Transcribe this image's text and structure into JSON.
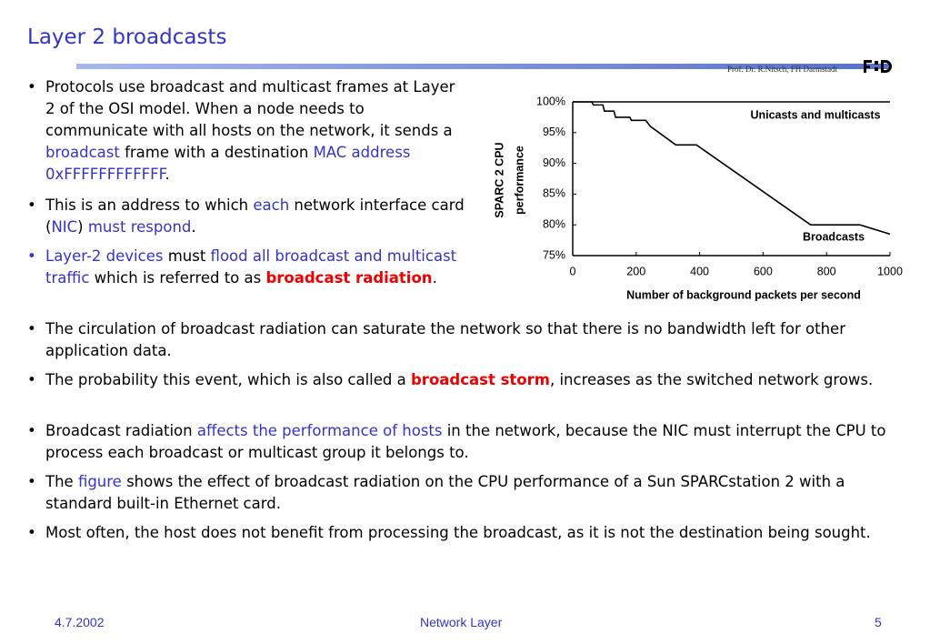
{
  "header": {
    "title": "Layer 2 broadcasts",
    "author": "Prof. Dr. R.Nitsch, FH Darmstadt"
  },
  "paragraphs": [
    {
      "runs": [
        {
          "text": "Protocols use broadcast and multicast frames at Layer 2 of the OSI model.   When a node needs to communicate with all hosts on the network, it sends a "
        },
        {
          "text": "broadcast",
          "style": "blue"
        },
        {
          "text": " frame with a destination "
        },
        {
          "text": "MAC address 0xFFFFFFFFFFFF",
          "style": "blue"
        },
        {
          "text": "."
        }
      ]
    },
    {
      "runs": [
        {
          "text": "This is an address to which "
        },
        {
          "text": "each",
          "style": "blue"
        },
        {
          "text": " network interface card ("
        },
        {
          "text": "NIC",
          "style": "blue"
        },
        {
          "text": ") "
        },
        {
          "text": "must respond",
          "style": "blue"
        },
        {
          "text": "."
        }
      ]
    },
    {
      "bullet_style": "blue",
      "runs": [
        {
          "text": "Layer-2 devices",
          "style": "blue"
        },
        {
          "text": " must "
        },
        {
          "text": "flood all broadcast and multicast traffic",
          "style": "blue"
        },
        {
          "text": " which is referred to as "
        },
        {
          "text": "broadcast radiation",
          "style": "red"
        },
        {
          "text": "."
        }
      ]
    },
    {
      "runs": [
        {
          "text": "The circulation of broadcast radiation can saturate the network so that there is no bandwidth left for other application data."
        }
      ]
    },
    {
      "runs": [
        {
          "text": "The probability this event, which is also called a "
        },
        {
          "text": "broadcast storm",
          "style": "red"
        },
        {
          "text": ", increases as the switched network grows."
        }
      ]
    },
    {
      "runs": [
        {
          "text": "Broadcast radiation "
        },
        {
          "text": "affects the performance of hosts",
          "style": "blue"
        },
        {
          "text": " in the network, because the NIC must interrupt the CPU to process each broadcast or multicast group it belongs to."
        }
      ]
    },
    {
      "runs": [
        {
          "text": "The "
        },
        {
          "text": "figure",
          "style": "blue"
        },
        {
          "text": " shows the effect of broadcast radiation on the CPU performance of a Sun SPARCstation 2 with a standard built-in Ethernet card."
        }
      ]
    },
    {
      "runs": [
        {
          "text": "Most often, the host does not benefit from processing the broadcast, as it is not the destination being sought."
        }
      ]
    }
  ],
  "chart_data": {
    "type": "line",
    "x_label": "Number of background packets per second",
    "y_label": [
      "SPARC 2 CPU",
      "performance"
    ],
    "xlim": [
      0,
      1000
    ],
    "xticks": [
      0,
      200,
      400,
      600,
      800,
      1000
    ],
    "ylim": [
      75,
      100
    ],
    "yticks": [
      {
        "value": 75,
        "label": "75%"
      },
      {
        "value": 80,
        "label": "80%"
      },
      {
        "value": 85,
        "label": "85%"
      },
      {
        "value": 90,
        "label": "90%"
      },
      {
        "value": 95,
        "label": "95%"
      },
      {
        "value": 100,
        "label": "100%"
      }
    ],
    "series": [
      {
        "name": "Unicasts and multicasts",
        "color": "#000000",
        "x": [
          0,
          1000
        ],
        "values": [
          100,
          100
        ]
      },
      {
        "name": "Broadcasts",
        "color": "#000000",
        "x": [
          0,
          60,
          65,
          95,
          100,
          130,
          135,
          180,
          185,
          230,
          245,
          325,
          390,
          750,
          905,
          1000
        ],
        "values": [
          100,
          100,
          99.5,
          99.5,
          98.5,
          98.5,
          97.5,
          97.5,
          97,
          97,
          96,
          93,
          93,
          80,
          80,
          78.5
        ]
      }
    ]
  },
  "footer": {
    "date": "4.7.2002",
    "section": "Network Layer",
    "page": "5"
  }
}
